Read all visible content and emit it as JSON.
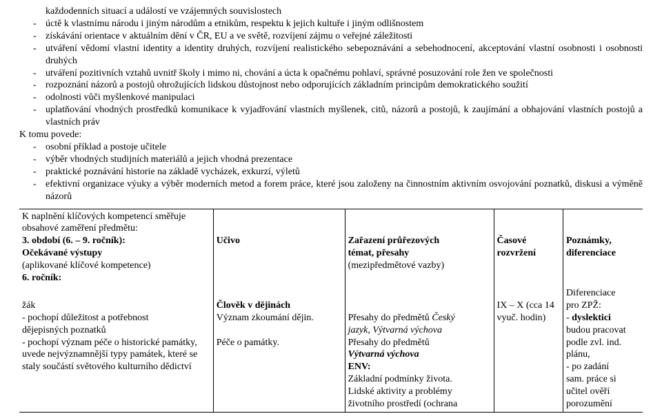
{
  "top": {
    "cont1": "každodenních situací a událostí ve vzájemných souvislostech",
    "b1": "úctě k vlastnímu národu i jiným národům a etnikům, respektu k jejich kultuře i jiným odlišnostem",
    "b2": "získávání orientace v aktuálním dění v ČR, EU a ve světě, rozvíjení zájmu o veřejné záležitosti",
    "b3": "utváření vědomí vlastní identity a identity druhých, rozvíjení realistického sebepoznávání a sebehodnocení, akceptování vlastní osobnosti i osobnosti druhých",
    "b4": "utváření pozitivních vztahů uvnitř školy i mimo ni, chování a úcta k opačnému pohlaví, správné posuzování role žen ve společnosti",
    "b5": "rozpoznání názorů a postojů ohrožujících lidskou důstojnost nebo odporujících základním principům demokratického soužití",
    "b6": "odolnosti vůči myšlenkové manipulaci",
    "b7": "uplatňování vhodných prostředků komunikace k vyjadřování vlastních myšlenek, citů, názorů a postojů, k zaujímání a obhajování vlastních postojů a vlastních práv",
    "ktomu": "K tomu povede:",
    "k1": "osobní příklad a postoje učitele",
    "k2": "výběr vhodných studijních materiálů a jejich vhodná prezentace",
    "k3": "praktické poznávání historie na základě vycházek, exkurzí, výletů",
    "k4": "efektivní organizace výuky a výběr moderních metod a forem práce, které jsou založeny na činnostním aktivním osvojování poznatků, diskusi a výměně názorů"
  },
  "table": {
    "intro": "K naplnění klíčových kompetencí směřuje obsahové zaměření předmětu:",
    "period": "3. období (6. – 9. ročník):",
    "head": {
      "c1a": "Očekávané výstupy",
      "c1b": "(aplikované klíčové kompetence)",
      "c1c": "6. ročník:",
      "c2": "Učivo",
      "c3a": "Zařazení průřezových",
      "c3b": "témat, přesahy",
      "c3c": "(mezipředmětové vazby)",
      "c4a": "Časové",
      "c4b": "rozvržení",
      "c5a": "Poznámky,",
      "c5b": "diferenciace"
    },
    "row": {
      "c1_l1": "žák",
      "c1_l2": "- pochopí  důležitost  a potřebnost",
      "c1_l3": "dějepisných poznatků",
      "c1_l4": "- pochopí význam péče o historické památky,",
      "c1_l5": "uvede nejvýznamnější typy památek, které se",
      "c1_l6": "staly součástí světového kulturního dědictví",
      "c2_l1": "Člověk v dějinách",
      "c2_l2": "Význam zkoumání dějin.",
      "c2_l3": "Péče o památky.",
      "c3_l1": "Přesahy do předmětů ",
      "c3_l1i": "Český",
      "c3_l2i": "jazyk, Výtvarná výchova",
      "c3_l3": "Přesahy do předmětů",
      "c3_l4i": "Výtvarná výchova",
      "c3_l5": "ENV:",
      "c3_l6": "Základní podmínky života.",
      "c3_l7": "Lidské aktivity a problémy",
      "c3_l8": "životního prostředí (ochrana",
      "c4_l1": "IX – X (cca 14",
      "c4_l2": "vyuč. hodin)",
      "c5_l0": "Diferenciace",
      "c5_l1": "pro ZPŽ:",
      "c5_l2a": "- ",
      "c5_l2b": "dyslektici",
      "c5_l3": "budou pracovat",
      "c5_l4": "podle zvl. ind.",
      "c5_l5": "plánu,",
      "c5_l6": "- po zadání",
      "c5_l7": "sam. práce si",
      "c5_l8": "učitel ověří",
      "c5_l9": "porozumění"
    }
  }
}
